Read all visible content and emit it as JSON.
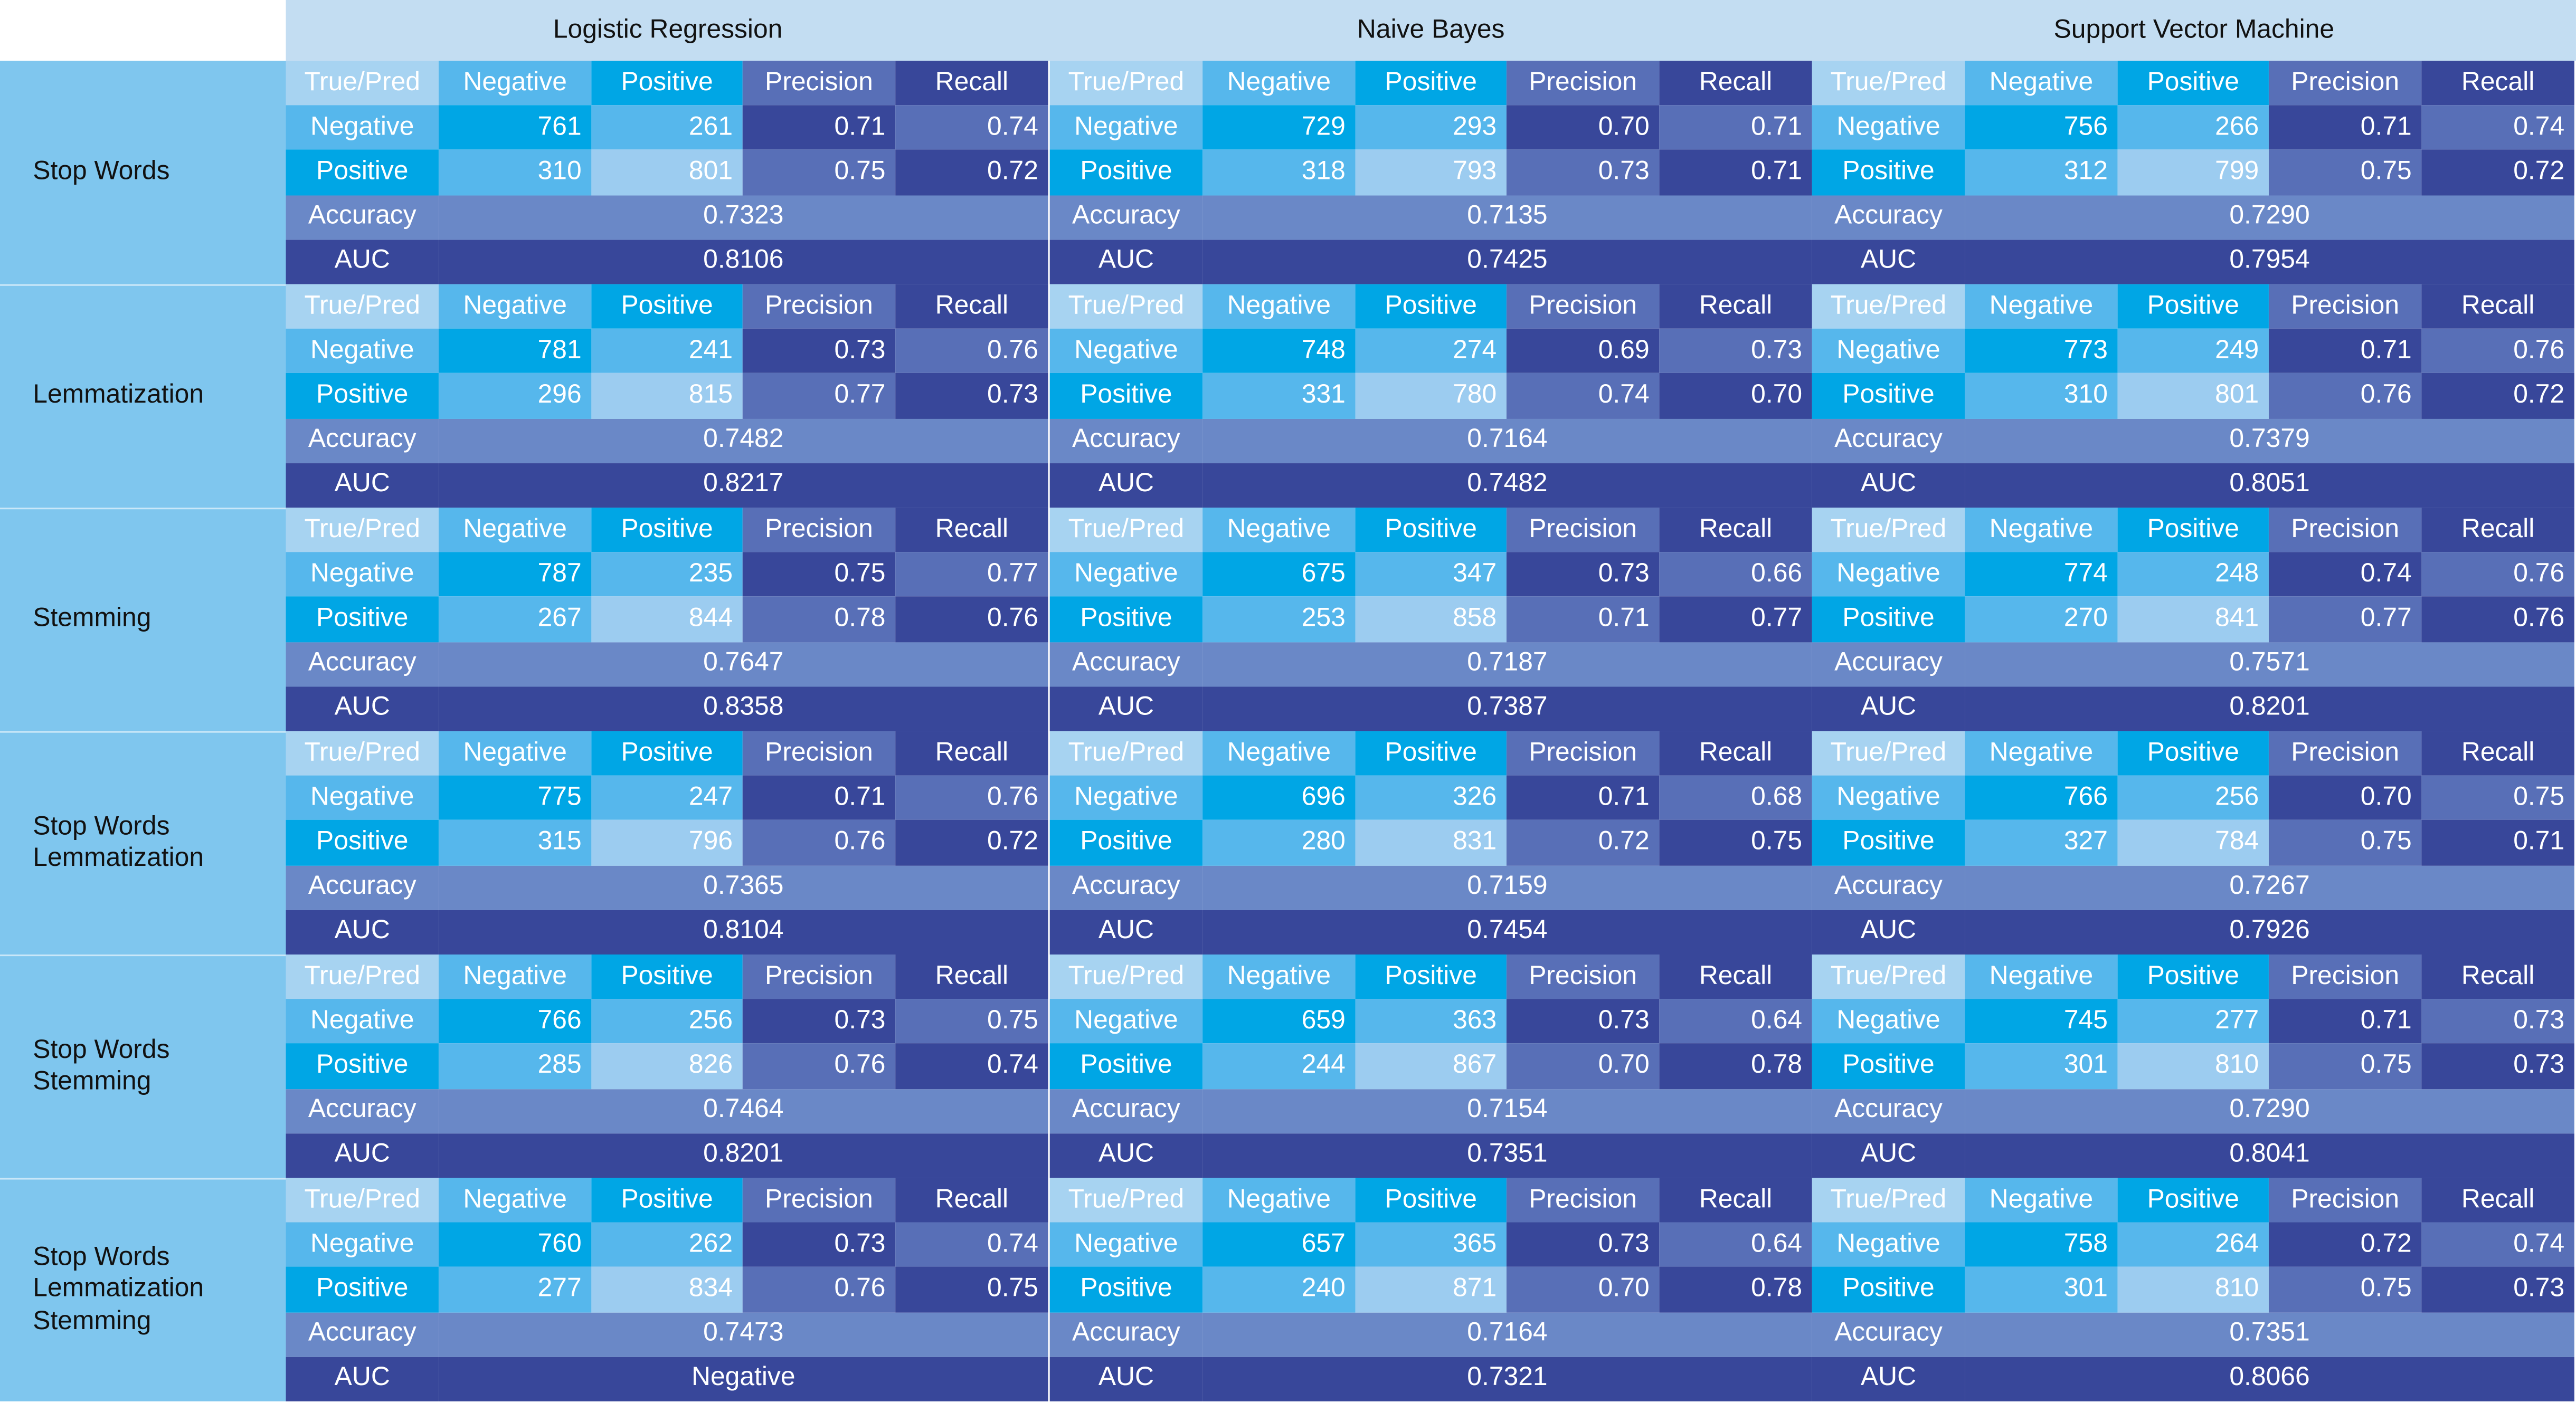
{
  "table_header": {
    "models": [
      "Logistic Regression",
      "Naive Bayes",
      "Support Vector Machine"
    ]
  },
  "labels": {
    "true_pred": "True/Pred",
    "negative": "Negative",
    "positive": "Positive",
    "precision": "Precision",
    "recall": "Recall",
    "accuracy": "Accuracy",
    "auc": "AUC"
  },
  "colors": {
    "header_bg": "#c3ddf2",
    "row_label_bg": "#7fc6ee",
    "true_pred_bg": "#a7d3f1",
    "negative_cell_bg": "#00a6e5",
    "negative_row_bg": "#56b7ec",
    "positive_cell_bg": "#9cccf0",
    "precision_bg": "#586fb7",
    "recall_bg": "#38479a",
    "accuracy_bg": "#6a88c7",
    "auc_bg": "#38479a"
  },
  "chart_data": {
    "type": "table",
    "columns": [
      "Logistic Regression",
      "Naive Bayes",
      "Support Vector Machine"
    ],
    "blocks": [
      {
        "label": [
          "Stop Words"
        ],
        "models": [
          {
            "tn": 761,
            "fp": 261,
            "prec_neg": "0.71",
            "rec_neg": "0.74",
            "fn": 310,
            "tp": 801,
            "prec_pos": "0.75",
            "rec_pos": "0.72",
            "accuracy": "0.7323",
            "auc": "0.8106"
          },
          {
            "tn": 729,
            "fp": 293,
            "prec_neg": "0.70",
            "rec_neg": "0.71",
            "fn": 318,
            "tp": 793,
            "prec_pos": "0.73",
            "rec_pos": "0.71",
            "accuracy": "0.7135",
            "auc": "0.7425"
          },
          {
            "tn": 756,
            "fp": 266,
            "prec_neg": "0.71",
            "rec_neg": "0.74",
            "fn": 312,
            "tp": 799,
            "prec_pos": "0.75",
            "rec_pos": "0.72",
            "accuracy": "0.7290",
            "auc": "0.7954"
          }
        ]
      },
      {
        "label": [
          "Lemmatization"
        ],
        "models": [
          {
            "tn": 781,
            "fp": 241,
            "prec_neg": "0.73",
            "rec_neg": "0.76",
            "fn": 296,
            "tp": 815,
            "prec_pos": "0.77",
            "rec_pos": "0.73",
            "accuracy": "0.7482",
            "auc": "0.8217"
          },
          {
            "tn": 748,
            "fp": 274,
            "prec_neg": "0.69",
            "rec_neg": "0.73",
            "fn": 331,
            "tp": 780,
            "prec_pos": "0.74",
            "rec_pos": "0.70",
            "accuracy": "0.7164",
            "auc": "0.7482"
          },
          {
            "tn": 773,
            "fp": 249,
            "prec_neg": "0.71",
            "rec_neg": "0.76",
            "fn": 310,
            "tp": 801,
            "prec_pos": "0.76",
            "rec_pos": "0.72",
            "accuracy": "0.7379",
            "auc": "0.8051"
          }
        ]
      },
      {
        "label": [
          "Stemming"
        ],
        "models": [
          {
            "tn": 787,
            "fp": 235,
            "prec_neg": "0.75",
            "rec_neg": "0.77",
            "fn": 267,
            "tp": 844,
            "prec_pos": "0.78",
            "rec_pos": "0.76",
            "accuracy": "0.7647",
            "auc": "0.8358"
          },
          {
            "tn": 675,
            "fp": 347,
            "prec_neg": "0.73",
            "rec_neg": "0.66",
            "fn": 253,
            "tp": 858,
            "prec_pos": "0.71",
            "rec_pos": "0.77",
            "accuracy": "0.7187",
            "auc": "0.7387"
          },
          {
            "tn": 774,
            "fp": 248,
            "prec_neg": "0.74",
            "rec_neg": "0.76",
            "fn": 270,
            "tp": 841,
            "prec_pos": "0.77",
            "rec_pos": "0.76",
            "accuracy": "0.7571",
            "auc": "0.8201"
          }
        ]
      },
      {
        "label": [
          "Stop Words",
          "Lemmatization"
        ],
        "models": [
          {
            "tn": 775,
            "fp": 247,
            "prec_neg": "0.71",
            "rec_neg": "0.76",
            "fn": 315,
            "tp": 796,
            "prec_pos": "0.76",
            "rec_pos": "0.72",
            "accuracy": "0.7365",
            "auc": "0.8104"
          },
          {
            "tn": 696,
            "fp": 326,
            "prec_neg": "0.71",
            "rec_neg": "0.68",
            "fn": 280,
            "tp": 831,
            "prec_pos": "0.72",
            "rec_pos": "0.75",
            "accuracy": "0.7159",
            "auc": "0.7454"
          },
          {
            "tn": 766,
            "fp": 256,
            "prec_neg": "0.70",
            "rec_neg": "0.75",
            "fn": 327,
            "tp": 784,
            "prec_pos": "0.75",
            "rec_pos": "0.71",
            "accuracy": "0.7267",
            "auc": "0.7926"
          }
        ]
      },
      {
        "label": [
          "Stop Words",
          "Stemming"
        ],
        "models": [
          {
            "tn": 766,
            "fp": 256,
            "prec_neg": "0.73",
            "rec_neg": "0.75",
            "fn": 285,
            "tp": 826,
            "prec_pos": "0.76",
            "rec_pos": "0.74",
            "accuracy": "0.7464",
            "auc": "0.8201"
          },
          {
            "tn": 659,
            "fp": 363,
            "prec_neg": "0.73",
            "rec_neg": "0.64",
            "fn": 244,
            "tp": 867,
            "prec_pos": "0.70",
            "rec_pos": "0.78",
            "accuracy": "0.7154",
            "auc": "0.7351"
          },
          {
            "tn": 745,
            "fp": 277,
            "prec_neg": "0.71",
            "rec_neg": "0.73",
            "fn": 301,
            "tp": 810,
            "prec_pos": "0.75",
            "rec_pos": "0.73",
            "accuracy": "0.7290",
            "auc": "0.8041"
          }
        ]
      },
      {
        "label": [
          "Stop Words",
          "Lemmatization",
          "Stemming"
        ],
        "models": [
          {
            "tn": 760,
            "fp": 262,
            "prec_neg": "0.73",
            "rec_neg": "0.74",
            "fn": 277,
            "tp": 834,
            "prec_pos": "0.76",
            "rec_pos": "0.75",
            "accuracy": "0.7473",
            "auc": "Negative"
          },
          {
            "tn": 657,
            "fp": 365,
            "prec_neg": "0.73",
            "rec_neg": "0.64",
            "fn": 240,
            "tp": 871,
            "prec_pos": "0.70",
            "rec_pos": "0.78",
            "accuracy": "0.7164",
            "auc": "0.7321"
          },
          {
            "tn": 758,
            "fp": 264,
            "prec_neg": "0.72",
            "rec_neg": "0.74",
            "fn": 301,
            "tp": 810,
            "prec_pos": "0.75",
            "rec_pos": "0.73",
            "accuracy": "0.7351",
            "auc": "0.8066"
          }
        ]
      }
    ]
  }
}
